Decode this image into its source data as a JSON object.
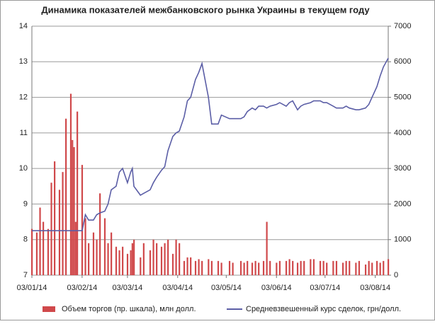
{
  "chart_data": {
    "type": "combo",
    "title": "Динамика показателей межбанковского рынка Украины в текущем году",
    "x": [
      "03/01/14",
      "06/01/14",
      "08/01/14",
      "10/01/14",
      "13/01/14",
      "15/01/14",
      "17/01/14",
      "20/01/14",
      "22/01/14",
      "24/01/14",
      "27/01/14",
      "28/01/14",
      "29/01/14",
      "30/01/14",
      "31/01/14",
      "03/02/14",
      "05/02/14",
      "07/02/14",
      "10/02/14",
      "12/02/14",
      "14/02/14",
      "17/02/14",
      "19/02/14",
      "21/02/14",
      "24/02/14",
      "26/02/14",
      "28/02/14",
      "03/03/14",
      "05/03/14",
      "06/03/14",
      "07/03/14",
      "11/03/14",
      "13/03/14",
      "17/03/14",
      "19/03/14",
      "21/03/14",
      "24/03/14",
      "26/03/14",
      "28/03/14",
      "31/03/14",
      "02/04/14",
      "04/04/14",
      "07/04/14",
      "09/04/14",
      "11/04/14",
      "14/04/14",
      "16/04/14",
      "18/04/14",
      "22/04/14",
      "24/04/14",
      "28/04/14",
      "30/04/14",
      "05/05/14",
      "07/05/14",
      "12/05/14",
      "14/05/14",
      "16/05/14",
      "19/05/14",
      "21/05/14",
      "23/05/14",
      "26/05/14",
      "28/05/14",
      "30/05/14",
      "03/06/14",
      "05/06/14",
      "09/06/14",
      "11/06/14",
      "13/06/14",
      "16/06/14",
      "18/06/14",
      "20/06/14",
      "24/06/14",
      "26/06/14",
      "30/06/14",
      "02/07/14",
      "04/07/14",
      "08/07/14",
      "10/07/14",
      "14/07/14",
      "16/07/14",
      "18/07/14",
      "22/07/14",
      "24/07/14",
      "28/07/14",
      "30/07/14",
      "01/08/14",
      "04/08/14",
      "06/08/14",
      "08/08/14",
      "11/08/14"
    ],
    "series": [
      {
        "name": "Объем торгов (пр. шкала), млн долл.",
        "type": "bar",
        "axis": "y2",
        "color": "#d0494b",
        "values": [
          1300,
          1200,
          1900,
          1500,
          1300,
          2600,
          3200,
          2400,
          2900,
          4400,
          5100,
          3800,
          3600,
          1500,
          4600,
          3100,
          1600,
          900,
          1200,
          1000,
          2300,
          1600,
          900,
          1200,
          800,
          700,
          800,
          600,
          700,
          900,
          1000,
          500,
          900,
          700,
          1000,
          900,
          800,
          900,
          1000,
          600,
          1000,
          900,
          400,
          500,
          500,
          400,
          450,
          400,
          450,
          400,
          400,
          350,
          400,
          350,
          400,
          350,
          400,
          350,
          400,
          350,
          400,
          1500,
          400,
          350,
          400,
          400,
          450,
          400,
          350,
          400,
          400,
          450,
          450,
          400,
          400,
          350,
          400,
          400,
          350,
          400,
          400,
          350,
          400,
          300,
          400,
          350,
          400,
          350,
          400,
          450
        ]
      },
      {
        "name": "Средневзвешенный курс сделок, грн/долл.",
        "type": "line",
        "color": "#5b5ea6",
        "values": [
          8.25,
          8.25,
          8.25,
          8.25,
          8.25,
          8.25,
          8.25,
          8.25,
          8.25,
          8.25,
          8.25,
          8.25,
          8.25,
          8.25,
          8.25,
          8.25,
          8.7,
          8.55,
          8.55,
          8.7,
          8.75,
          8.8,
          9.0,
          9.4,
          9.5,
          9.9,
          10.0,
          9.6,
          9.9,
          10.0,
          9.5,
          9.25,
          9.3,
          9.4,
          9.6,
          9.75,
          9.95,
          10.05,
          10.5,
          10.9,
          11.0,
          11.05,
          11.45,
          11.9,
          12.0,
          12.5,
          12.7,
          12.95,
          12.0,
          11.25,
          11.25,
          11.5,
          11.4,
          11.4,
          11.4,
          11.45,
          11.6,
          11.7,
          11.65,
          11.75,
          11.75,
          11.7,
          11.75,
          11.8,
          11.85,
          11.75,
          11.85,
          11.9,
          11.65,
          11.75,
          11.8,
          11.85,
          11.9,
          11.9,
          11.85,
          11.85,
          11.75,
          11.7,
          11.7,
          11.75,
          11.7,
          11.65,
          11.65,
          11.7,
          11.8,
          12.0,
          12.3,
          12.6,
          12.85,
          13.1
        ]
      }
    ],
    "xlim": [
      "03/01/14",
      "11/08/14"
    ],
    "xticks": [
      "03/01/14",
      "03/02/14",
      "03/03/14",
      "03/04/14",
      "03/05/14",
      "03/06/14",
      "03/07/14",
      "03/08/14"
    ],
    "ylim": [
      7,
      14
    ],
    "yticks": [
      7,
      8,
      9,
      10,
      11,
      12,
      13,
      14
    ],
    "y2lim": [
      0,
      7000
    ],
    "y2ticks": [
      0,
      1000,
      2000,
      3000,
      4000,
      5000,
      6000,
      7000
    ],
    "grid": true
  }
}
